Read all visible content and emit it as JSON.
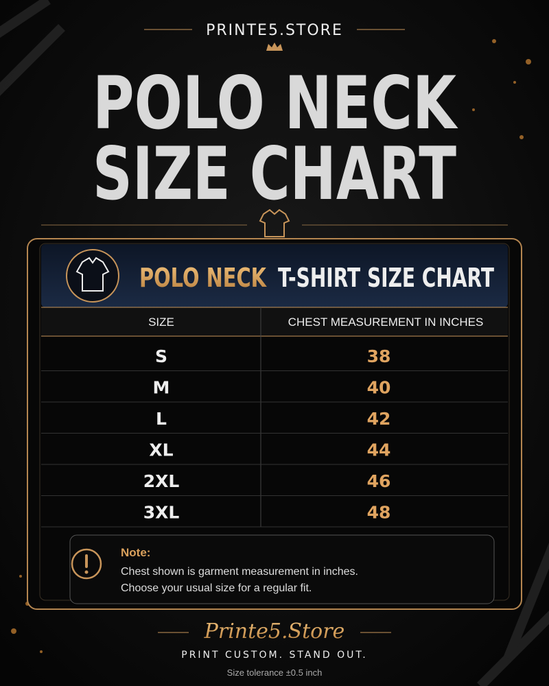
{
  "brand": "PRINTE5.STORE",
  "title": {
    "line1": "POLO NECK",
    "line2": "SIZE CHART"
  },
  "card": {
    "heading_accent": "POLO NECK",
    "heading_rest": "T-SHIRT SIZE CHART"
  },
  "table": {
    "headers": [
      "SIZE",
      "CHEST MEASUREMENT IN INCHES"
    ],
    "rows": [
      [
        "S",
        "38"
      ],
      [
        "M",
        "40"
      ],
      [
        "L",
        "42"
      ],
      [
        "XL",
        "44"
      ],
      [
        "2XL",
        "46"
      ],
      [
        "3XL",
        "48"
      ]
    ]
  },
  "note": {
    "label": "Note:",
    "lines": [
      "Chest shown is garment measurement in inches.",
      "Choose your usual size for a regular fit."
    ]
  },
  "footer": {
    "logo": "Printe5.Store",
    "tagline": "PRINT CUSTOM. STAND OUT.",
    "tolerance": "Size tolerance ±0.5 inch"
  }
}
